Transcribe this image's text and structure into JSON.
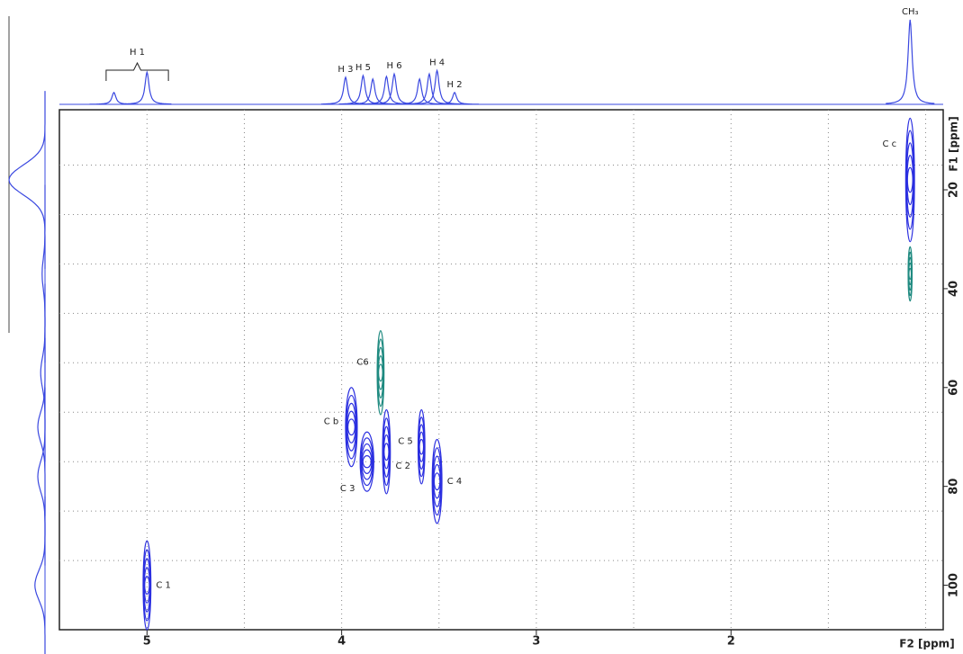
{
  "chart_data": {
    "type": "hsqc",
    "x_label": "F2 [ppm]",
    "y_label": "F1 [ppm]",
    "xlim": [
      5.45,
      0.91
    ],
    "ylim": [
      3.8,
      109
    ],
    "xticks": [
      5,
      4,
      3,
      2
    ],
    "yticks": [
      20,
      40,
      60,
      80,
      100
    ],
    "xgrid": [
      5,
      4.5,
      4,
      3.5,
      3,
      2.5,
      2,
      1.5,
      1
    ],
    "ygrid": [
      15,
      25,
      35,
      45,
      55,
      65,
      75,
      85,
      95
    ],
    "grid": true,
    "f2_projection": {
      "color": "#3a48e0",
      "x": [
        5.17,
        5.0,
        3.98,
        3.89,
        3.84,
        3.77,
        3.73,
        3.6,
        3.55,
        3.51,
        3.42,
        1.08
      ],
      "values": [
        14,
        38,
        32,
        34,
        30,
        33,
        36,
        30,
        36,
        40,
        14,
        100
      ],
      "labels": [
        null,
        null,
        "H 3",
        "H 5",
        null,
        null,
        "H 6",
        null,
        null,
        "H 4",
        "H 2",
        "CH₃"
      ],
      "bracket_label": "H 1",
      "bracket": [
        5.21,
        4.89
      ]
    },
    "f1_projection": {
      "color": "#3a48e0",
      "y": [
        18,
        37,
        57,
        68,
        78,
        100
      ],
      "values": [
        100,
        8,
        12,
        20,
        20,
        28
      ]
    },
    "peaks": [
      {
        "label": "C 1",
        "x": 5.0,
        "y": 100,
        "dx": 0.04,
        "dy": 18,
        "color": "#2b2fe0"
      },
      {
        "label": "C c",
        "x": 1.08,
        "y": 18,
        "dx": 0.045,
        "dy": 25,
        "color": "#2b2fe0"
      },
      {
        "x": 1.08,
        "y": 37,
        "dx": 0.02,
        "dy": 11,
        "color": "#1f8a80"
      },
      {
        "label": "C6",
        "x": 3.8,
        "y": 57,
        "dx": 0.035,
        "dy": 17,
        "color": "#1f8a80"
      },
      {
        "label": "C b",
        "x": 3.95,
        "y": 68,
        "dx": 0.06,
        "dy": 16,
        "color": "#2b2fe0"
      },
      {
        "label": "C 3",
        "x": 3.87,
        "y": 75,
        "dx": 0.07,
        "dy": 12,
        "color": "#2b2fe0"
      },
      {
        "label": "C 2",
        "x": 3.77,
        "y": 73,
        "dx": 0.04,
        "dy": 17,
        "color": "#2b2fe0"
      },
      {
        "label": "C 5",
        "x": 3.59,
        "y": 72,
        "dx": 0.035,
        "dy": 15,
        "color": "#2b2fe0"
      },
      {
        "label": "C 4",
        "x": 3.51,
        "y": 79,
        "dx": 0.05,
        "dy": 17,
        "color": "#2b2fe0"
      }
    ]
  }
}
